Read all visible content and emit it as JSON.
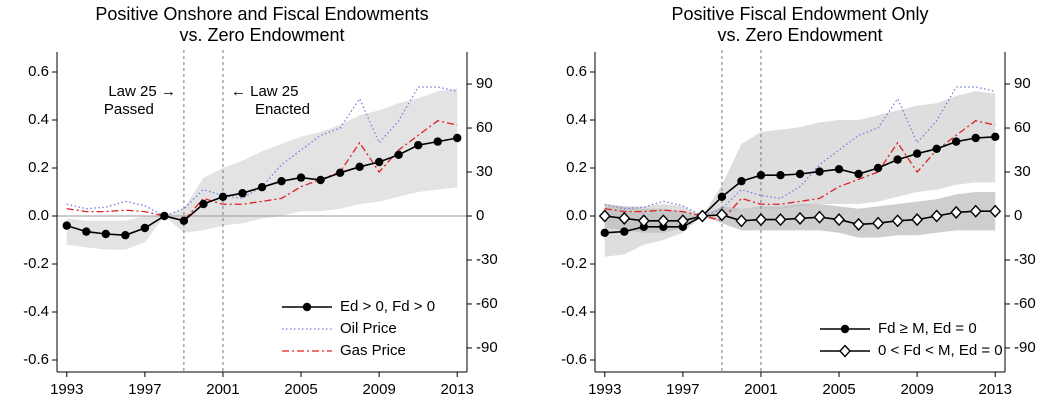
{
  "chart_data": [
    {
      "type": "line",
      "title": [
        "Positive Onshore and Fiscal Endowments",
        "vs. Zero Endowment"
      ],
      "x": [
        1993,
        1994,
        1995,
        1996,
        1997,
        1998,
        1999,
        2000,
        2001,
        2002,
        2003,
        2004,
        2005,
        2006,
        2007,
        2008,
        2009,
        2010,
        2011,
        2012,
        2013
      ],
      "xlim": [
        1992.5,
        2013.5
      ],
      "xticks": [
        1993,
        1997,
        2001,
        2005,
        2009,
        2013
      ],
      "ylim": [
        -0.65,
        0.65
      ],
      "yticks": [
        0.6,
        0.4,
        0.2,
        {
          "value": 0,
          "label": "0.0"
        },
        -0.2,
        -0.4,
        -0.6
      ],
      "y2lim": [
        -106.4,
        106.4
      ],
      "y2ticks": [
        90,
        60,
        30,
        0,
        -30,
        -60,
        -90
      ],
      "zero_line": true,
      "vlines": [
        1999,
        2001
      ],
      "legend": "lower right",
      "annotations": [
        [
          "Law 25 →",
          "Passed"
        ],
        [
          "← Law 25",
          "Enacted"
        ]
      ],
      "bands": [
        {
          "color": "#d9d9d9",
          "upper": [
            -0.01,
            -0.02,
            -0.02,
            -0.02,
            0,
            0,
            0.03,
            0.16,
            0.2,
            0.23,
            0.27,
            0.3,
            0.33,
            0.35,
            0.38,
            0.42,
            0.44,
            0.47,
            0.49,
            0.52,
            0.53
          ],
          "lower": [
            -0.12,
            -0.13,
            -0.14,
            -0.14,
            -0.11,
            0,
            -0.07,
            -0.06,
            -0.04,
            -0.03,
            -0.01,
            0,
            0.02,
            0.02,
            0.03,
            0.05,
            0.06,
            0.08,
            0.1,
            0.11,
            0.12
          ]
        }
      ],
      "series": [
        {
          "name": "Oil Price",
          "color": "#7080e0",
          "style": "dotted",
          "axis": "y2",
          "values": [
            8,
            5,
            6,
            10,
            7,
            0,
            5,
            18,
            14,
            12,
            20,
            35,
            45,
            55,
            60,
            80,
            50,
            65,
            88,
            88,
            85
          ]
        },
        {
          "name": "Gas Price",
          "color": "#e02020",
          "style": "dashdot",
          "axis": "y2",
          "values": [
            5,
            3,
            3,
            4,
            3,
            0,
            -3,
            12,
            8,
            8,
            10,
            12,
            20,
            25,
            30,
            50,
            30,
            45,
            55,
            65,
            62
          ]
        },
        {
          "name": "Ed > 0, Fd > 0",
          "color": "#000000",
          "style": "solid",
          "marker": "circle",
          "values": [
            -0.04,
            -0.065,
            -0.075,
            -0.08,
            -0.05,
            0,
            -0.02,
            0.05,
            0.08,
            0.095,
            0.12,
            0.145,
            0.16,
            0.15,
            0.18,
            0.205,
            0.225,
            0.255,
            0.295,
            0.31,
            0.325
          ]
        }
      ],
      "legend_order": [
        2,
        0,
        1
      ]
    },
    {
      "type": "line",
      "title": [
        "Positive Fiscal Endowment Only",
        "vs. Zero Endowment"
      ],
      "x": [
        1993,
        1994,
        1995,
        1996,
        1997,
        1998,
        1999,
        2000,
        2001,
        2002,
        2003,
        2004,
        2005,
        2006,
        2007,
        2008,
        2009,
        2010,
        2011,
        2012,
        2013
      ],
      "xlim": [
        1992.5,
        2013.5
      ],
      "xticks": [
        1993,
        1997,
        2001,
        2005,
        2009,
        2013
      ],
      "ylim": [
        -0.65,
        0.65
      ],
      "yticks": [
        0.6,
        0.4,
        0.2,
        {
          "value": 0,
          "label": "0.0"
        },
        -0.2,
        -0.4,
        -0.6
      ],
      "y2lim": [
        -106.4,
        106.4
      ],
      "y2ticks": [
        90,
        60,
        30,
        0,
        -30,
        -60,
        -90
      ],
      "zero_line": false,
      "vlines": [
        1999,
        2001
      ],
      "legend": "lower right",
      "bands": [
        {
          "color": "#d3d3d3",
          "upper": [
            0.04,
            0.04,
            0.04,
            0.05,
            0.04,
            0,
            0.13,
            0.3,
            0.35,
            0.36,
            0.37,
            0.39,
            0.4,
            0.4,
            0.42,
            0.44,
            0.46,
            0.47,
            0.5,
            0.52,
            0.51
          ],
          "lower": [
            -0.17,
            -0.16,
            -0.12,
            -0.1,
            -0.07,
            0,
            0,
            0.03,
            0.03,
            0.03,
            0.04,
            0.05,
            0.05,
            0.05,
            0.06,
            0.08,
            0.1,
            0.11,
            0.13,
            0.14,
            0.14
          ]
        },
        {
          "color": "#bdbdbd",
          "upper": [
            0.05,
            0.04,
            0.03,
            0.03,
            0.02,
            0,
            0.04,
            0.03,
            0.04,
            0.04,
            0.05,
            0.05,
            0.04,
            0.03,
            0.04,
            0.05,
            0.06,
            0.07,
            0.09,
            0.1,
            0.1
          ],
          "lower": [
            -0.05,
            -0.06,
            -0.07,
            -0.07,
            -0.05,
            0,
            -0.03,
            -0.06,
            -0.06,
            -0.06,
            -0.06,
            -0.06,
            -0.07,
            -0.09,
            -0.09,
            -0.08,
            -0.08,
            -0.07,
            -0.06,
            -0.06,
            -0.06
          ]
        }
      ],
      "series": [
        {
          "color": "#7080e0",
          "style": "dotted",
          "axis": "y2",
          "values": [
            8,
            5,
            6,
            10,
            7,
            0,
            5,
            18,
            14,
            12,
            20,
            35,
            45,
            55,
            60,
            80,
            50,
            65,
            88,
            88,
            85
          ]
        },
        {
          "color": "#e02020",
          "style": "dashdot",
          "axis": "y2",
          "values": [
            5,
            3,
            3,
            4,
            3,
            0,
            -3,
            12,
            8,
            8,
            10,
            12,
            20,
            25,
            30,
            50,
            30,
            45,
            55,
            65,
            62
          ]
        },
        {
          "name": "Fd ≥ M, Ed = 0",
          "color": "#000000",
          "style": "solid",
          "marker": "circle",
          "values": [
            -0.07,
            -0.065,
            -0.045,
            -0.045,
            -0.045,
            0,
            0.08,
            0.145,
            0.17,
            0.17,
            0.175,
            0.185,
            0.195,
            0.175,
            0.2,
            0.235,
            0.26,
            0.28,
            0.31,
            0.325,
            0.33
          ]
        },
        {
          "name": "0 < Fd < M, Ed = 0",
          "color": "#000000",
          "style": "solid",
          "marker": "diamond",
          "values": [
            0,
            -0.01,
            -0.02,
            -0.02,
            -0.02,
            0,
            0.005,
            -0.02,
            -0.015,
            -0.015,
            -0.01,
            -0.005,
            -0.015,
            -0.035,
            -0.03,
            -0.02,
            -0.015,
            0,
            0.015,
            0.02,
            0.02
          ]
        }
      ],
      "legend_order": [
        2,
        3
      ]
    }
  ]
}
